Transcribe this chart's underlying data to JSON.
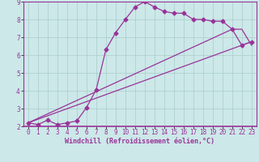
{
  "line1_x": [
    0,
    1,
    2,
    3,
    4,
    5,
    6,
    7,
    8,
    9,
    10,
    11,
    12,
    13,
    14,
    15,
    16,
    17,
    18,
    19,
    20,
    21,
    22,
    23
  ],
  "line1_y": [
    2.2,
    2.1,
    2.35,
    2.1,
    2.2,
    2.3,
    3.05,
    4.05,
    6.3,
    7.25,
    8.0,
    8.7,
    9.0,
    8.7,
    8.45,
    8.35,
    8.35,
    8.0,
    8.0,
    7.9,
    7.9,
    7.45,
    6.55,
    6.75
  ],
  "line2_x": [
    0,
    21,
    22,
    23
  ],
  "line2_y": [
    2.2,
    7.45,
    7.45,
    6.55
  ],
  "line3_x": [
    0,
    23
  ],
  "line3_y": [
    2.2,
    6.75
  ],
  "color": "#993399",
  "bg_color": "#cce8e8",
  "grid_color": "#aacccc",
  "xlabel": "Windchill (Refroidissement éolien,°C)",
  "xlim": [
    -0.5,
    23.5
  ],
  "ylim": [
    2,
    9
  ],
  "xticks": [
    0,
    1,
    2,
    3,
    4,
    5,
    6,
    7,
    8,
    9,
    10,
    11,
    12,
    13,
    14,
    15,
    16,
    17,
    18,
    19,
    20,
    21,
    22,
    23
  ],
  "yticks": [
    2,
    3,
    4,
    5,
    6,
    7,
    8,
    9
  ],
  "marker": "D",
  "markersize": 2.5,
  "linewidth": 0.9,
  "tick_fontsize": 5.5,
  "xlabel_fontsize": 6.0
}
